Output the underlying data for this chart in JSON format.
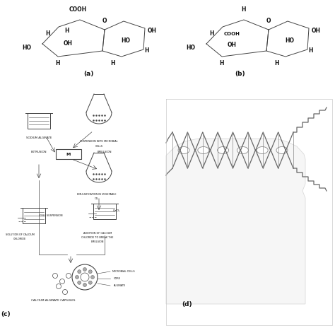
{
  "bg_color": "#ffffff",
  "font_color": "#111111",
  "line_color": "#444444",
  "fs_label": 5.5,
  "fs_caption": 6.5,
  "fs_small": 3.5,
  "fs_tiny": 3.0,
  "panel_a_label": "(a)",
  "panel_b_label": "(b)",
  "panel_c_label": "(c)",
  "panel_d_label": "(d)"
}
